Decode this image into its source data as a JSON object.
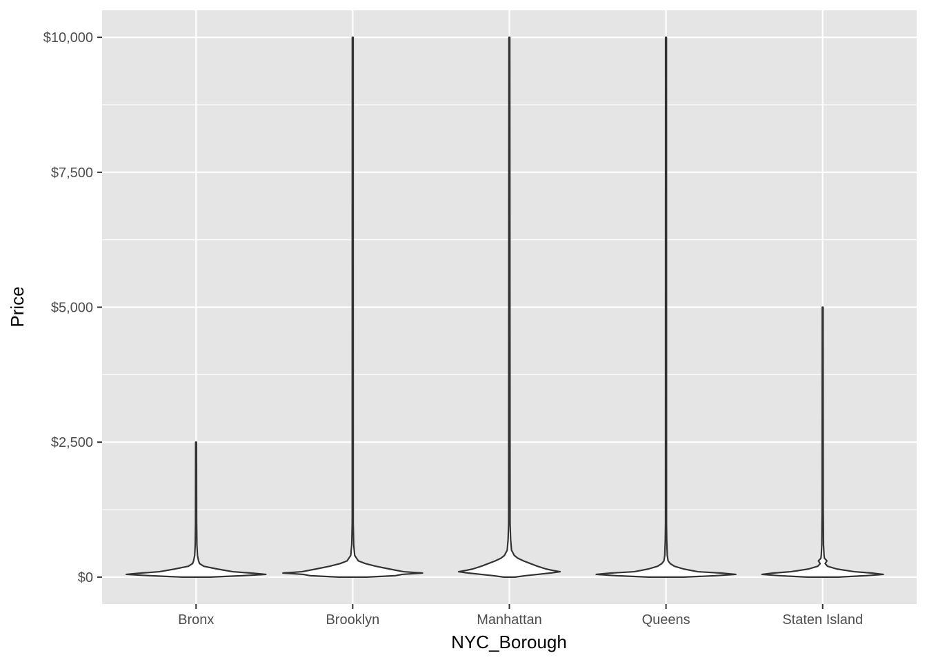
{
  "chart_data": {
    "type": "violin",
    "title": "",
    "xlabel": "NYC_Borough",
    "ylabel": "Price",
    "categories": [
      "Bronx",
      "Brooklyn",
      "Manhattan",
      "Queens",
      "Staten Island"
    ],
    "ylim": [
      -500,
      10500
    ],
    "yticks": [
      {
        "value": 0,
        "label": "$0"
      },
      {
        "value": 2500,
        "label": "$2,500"
      },
      {
        "value": 5000,
        "label": "$5,000"
      },
      {
        "value": 7500,
        "label": "$7,500"
      },
      {
        "value": 10000,
        "label": "$10,000"
      }
    ],
    "y_minor_ticks": [
      1250,
      3750,
      6250,
      8750
    ],
    "grid": true,
    "colors": {
      "panel": "#e5e5e5",
      "grid": "#ffffff",
      "outline": "#333333",
      "fill": "#ffffff",
      "tick_text": "#4d4d4d",
      "tick_mark": "#333333"
    },
    "series": [
      {
        "category": "Bronx",
        "min": 0,
        "max": 2500,
        "profile": [
          [
            0,
            0.2
          ],
          [
            25,
            0.65
          ],
          [
            50,
            0.99
          ],
          [
            75,
            0.78
          ],
          [
            100,
            0.52
          ],
          [
            150,
            0.3
          ],
          [
            200,
            0.11
          ],
          [
            250,
            0.05
          ],
          [
            300,
            0.035
          ],
          [
            400,
            0.02
          ],
          [
            600,
            0.012
          ],
          [
            1000,
            0.008
          ],
          [
            2500,
            0.006
          ]
        ]
      },
      {
        "category": "Brooklyn",
        "min": 0,
        "max": 10000,
        "profile": [
          [
            0,
            0.2
          ],
          [
            25,
            0.6
          ],
          [
            50,
            0.7
          ],
          [
            75,
            0.99
          ],
          [
            100,
            0.72
          ],
          [
            150,
            0.52
          ],
          [
            200,
            0.33
          ],
          [
            250,
            0.18
          ],
          [
            300,
            0.08
          ],
          [
            400,
            0.028
          ],
          [
            600,
            0.014
          ],
          [
            1000,
            0.007
          ],
          [
            10000,
            0.006
          ]
        ]
      },
      {
        "category": "Manhattan",
        "min": 0,
        "max": 10000,
        "profile": [
          [
            0,
            0.08
          ],
          [
            25,
            0.22
          ],
          [
            50,
            0.4
          ],
          [
            75,
            0.58
          ],
          [
            100,
            0.72
          ],
          [
            125,
            0.61
          ],
          [
            150,
            0.52
          ],
          [
            200,
            0.4
          ],
          [
            250,
            0.3
          ],
          [
            300,
            0.2
          ],
          [
            350,
            0.12
          ],
          [
            400,
            0.07
          ],
          [
            500,
            0.03
          ],
          [
            700,
            0.018
          ],
          [
            1000,
            0.01
          ],
          [
            10000,
            0.006
          ]
        ]
      },
      {
        "category": "Queens",
        "min": 0,
        "max": 10000,
        "profile": [
          [
            0,
            0.25
          ],
          [
            25,
            0.7
          ],
          [
            50,
            0.99
          ],
          [
            75,
            0.78
          ],
          [
            100,
            0.45
          ],
          [
            150,
            0.25
          ],
          [
            200,
            0.12
          ],
          [
            250,
            0.06
          ],
          [
            300,
            0.03
          ],
          [
            400,
            0.018
          ],
          [
            700,
            0.01
          ],
          [
            1000,
            0.007
          ],
          [
            10000,
            0.006
          ]
        ]
      },
      {
        "category": "Staten Island",
        "min": 0,
        "max": 5000,
        "profile": [
          [
            0,
            0.22
          ],
          [
            25,
            0.6
          ],
          [
            50,
            0.86
          ],
          [
            75,
            0.7
          ],
          [
            100,
            0.45
          ],
          [
            150,
            0.2
          ],
          [
            200,
            0.07
          ],
          [
            250,
            0.035
          ],
          [
            300,
            0.06
          ],
          [
            350,
            0.025
          ],
          [
            400,
            0.02
          ],
          [
            600,
            0.012
          ],
          [
            1000,
            0.01
          ],
          [
            1250,
            0.008
          ],
          [
            5000,
            0.006
          ]
        ]
      }
    ]
  }
}
